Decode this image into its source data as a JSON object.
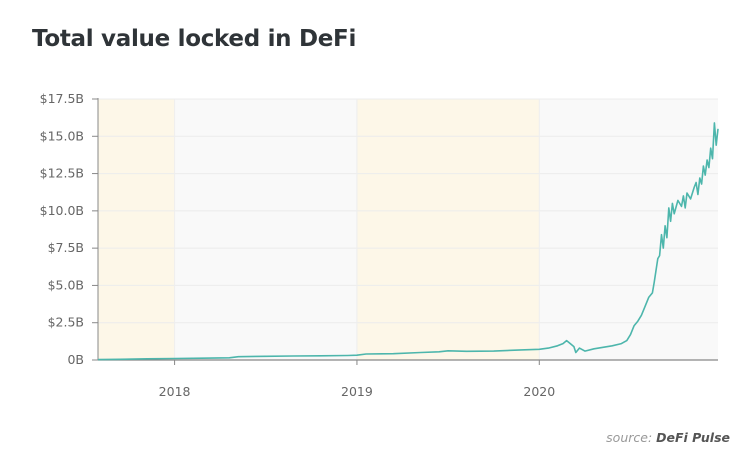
{
  "chart_data": {
    "type": "line",
    "title": "Total value locked in DeFi",
    "xlabel": "",
    "ylabel": "",
    "xlim": [
      2017.58,
      2020.98
    ],
    "ylim": [
      0,
      17.5
    ],
    "y_unit": "billion USD",
    "y_ticks": [
      0,
      2.5,
      5,
      7.5,
      10,
      12.5,
      15,
      17.5
    ],
    "y_tick_labels": [
      "0B",
      "$2.5B",
      "$5.0B",
      "$7.5B",
      "$10.0B",
      "$12.5B",
      "$15.0B",
      "$17.5B"
    ],
    "x_ticks": [
      2018,
      2019,
      2020
    ],
    "x_tick_labels": [
      "2018",
      "2019",
      "2020"
    ],
    "grid": true,
    "line_color": "#4db6ac",
    "band_colors": [
      "#fdf7e8",
      "#f9f9f9"
    ],
    "series": [
      {
        "name": "Total value locked",
        "x": [
          2017.58,
          2017.7,
          2017.85,
          2018.0,
          2018.15,
          2018.3,
          2018.35,
          2018.5,
          2018.65,
          2018.8,
          2018.95,
          2019.0,
          2019.05,
          2019.2,
          2019.35,
          2019.45,
          2019.5,
          2019.6,
          2019.75,
          2019.9,
          2020.0,
          2020.05,
          2020.1,
          2020.13,
          2020.15,
          2020.17,
          2020.19,
          2020.2,
          2020.22,
          2020.25,
          2020.3,
          2020.35,
          2020.4,
          2020.45,
          2020.48,
          2020.5,
          2020.52,
          2020.54,
          2020.56,
          2020.58,
          2020.6,
          2020.62,
          2020.63,
          2020.64,
          2020.65,
          2020.66,
          2020.67,
          2020.68,
          2020.69,
          2020.7,
          2020.71,
          2020.72,
          2020.73,
          2020.74,
          2020.76,
          2020.78,
          2020.79,
          2020.8,
          2020.81,
          2020.83,
          2020.85,
          2020.86,
          2020.87,
          2020.88,
          2020.89,
          2020.9,
          2020.91,
          2020.92,
          2020.93,
          2020.94,
          2020.95,
          2020.96,
          2020.97,
          2020.98
        ],
        "y": [
          0.03,
          0.05,
          0.08,
          0.1,
          0.12,
          0.15,
          0.22,
          0.25,
          0.27,
          0.28,
          0.3,
          0.32,
          0.4,
          0.42,
          0.5,
          0.55,
          0.62,
          0.58,
          0.6,
          0.68,
          0.72,
          0.8,
          0.95,
          1.1,
          1.3,
          1.1,
          0.9,
          0.5,
          0.8,
          0.6,
          0.75,
          0.85,
          0.95,
          1.1,
          1.3,
          1.7,
          2.3,
          2.6,
          3.0,
          3.6,
          4.2,
          4.5,
          5.2,
          6.0,
          6.8,
          7.0,
          8.4,
          7.5,
          9.0,
          8.2,
          10.2,
          9.3,
          10.5,
          9.8,
          10.7,
          10.3,
          11.0,
          10.2,
          11.2,
          10.8,
          11.6,
          11.9,
          11.1,
          12.2,
          11.8,
          13.0,
          12.4,
          13.4,
          12.9,
          14.2,
          13.5,
          15.9,
          14.4,
          15.5
        ]
      }
    ]
  },
  "source": {
    "prefix": "source:",
    "name": "DeFi Pulse"
  }
}
